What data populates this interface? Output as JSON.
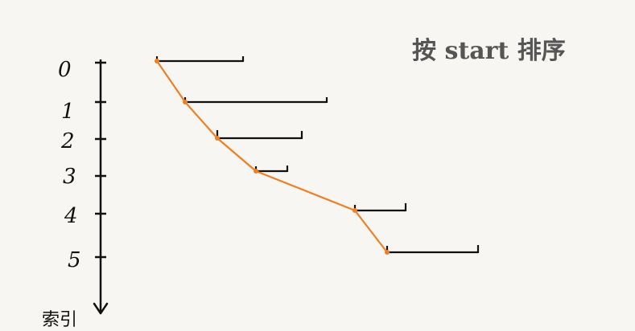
{
  "title": "按 start 排序",
  "axis_label": "索引",
  "index_labels": [
    "0",
    "1",
    "2",
    "3",
    "4",
    "5"
  ],
  "colors": {
    "line": "#111111",
    "path": "#f07f22",
    "background": "#f7f6f3"
  }
}
